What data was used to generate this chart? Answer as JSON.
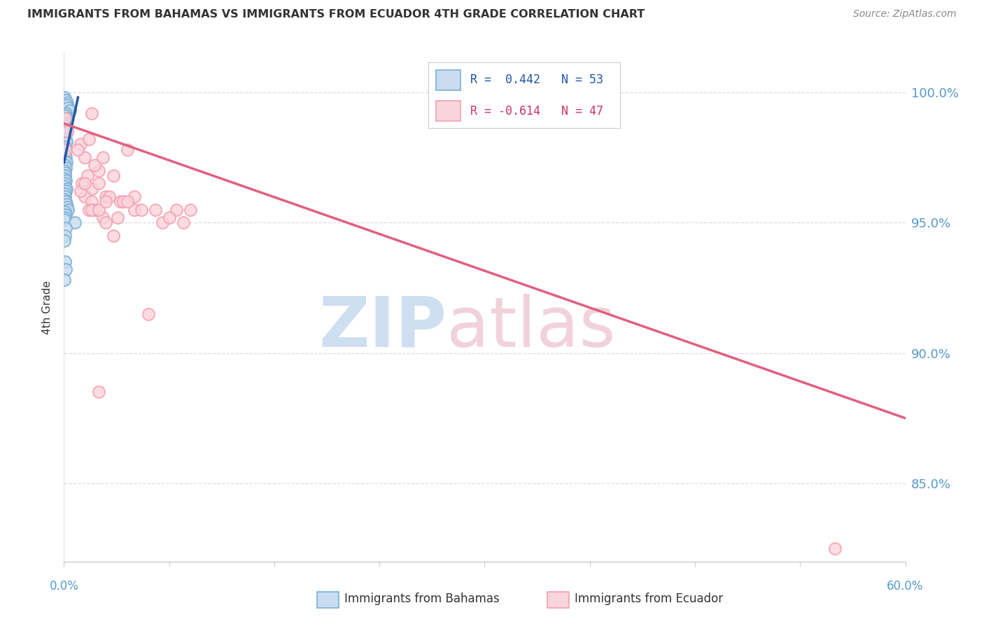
{
  "title": "IMMIGRANTS FROM BAHAMAS VS IMMIGRANTS FROM ECUADOR 4TH GRADE CORRELATION CHART",
  "source": "Source: ZipAtlas.com",
  "ylabel": "4th Grade",
  "xlim": [
    0.0,
    60.0
  ],
  "ylim": [
    82.0,
    101.5
  ],
  "yticks": [
    85.0,
    90.0,
    95.0,
    100.0
  ],
  "legend_r_blue": "R =  0.442",
  "legend_n_blue": "N = 53",
  "legend_r_pink": "R = -0.614",
  "legend_n_pink": "N = 47",
  "color_blue_edge": "#7BAFD4",
  "color_pink_edge": "#F4A0B0",
  "color_line_blue": "#2255AA",
  "color_line_pink": "#E06080",
  "watermark_zip_color": "#C8DCF0",
  "watermark_atlas_color": "#F0CED8",
  "blue_x": [
    0.05,
    0.12,
    0.08,
    0.22,
    0.18,
    0.28,
    0.45,
    0.15,
    0.1,
    0.2,
    0.05,
    0.08,
    0.12,
    0.25,
    0.07,
    0.05,
    0.15,
    0.18,
    0.1,
    0.04,
    0.06,
    0.12,
    0.03,
    0.17,
    0.07,
    0.13,
    0.04,
    0.09,
    0.08,
    0.03,
    0.13,
    0.08,
    0.05,
    0.18,
    0.13,
    0.09,
    0.08,
    0.04,
    0.13,
    0.18,
    0.22,
    0.28,
    0.08,
    0.13,
    0.08,
    0.04,
    0.8,
    0.13,
    0.1,
    0.05,
    0.08,
    0.13,
    0.04
  ],
  "blue_y": [
    99.8,
    99.7,
    99.5,
    99.6,
    99.5,
    99.4,
    99.3,
    99.2,
    99.1,
    99.0,
    98.8,
    98.7,
    98.6,
    98.5,
    98.4,
    98.3,
    98.2,
    98.1,
    97.9,
    97.8,
    97.6,
    97.5,
    97.4,
    97.3,
    97.2,
    97.1,
    97.0,
    96.9,
    96.8,
    96.7,
    96.6,
    96.5,
    96.4,
    96.3,
    96.2,
    96.1,
    96.0,
    95.9,
    95.8,
    95.7,
    95.6,
    95.5,
    95.4,
    95.3,
    95.2,
    95.1,
    95.0,
    94.8,
    94.5,
    94.3,
    93.5,
    93.2,
    92.8
  ],
  "pink_x": [
    0.1,
    0.25,
    0.15,
    2.0,
    1.2,
    1.5,
    2.5,
    1.8,
    2.2,
    1.0,
    1.3,
    1.7,
    2.8,
    2.0,
    1.5,
    1.2,
    3.5,
    2.0,
    1.8,
    2.5,
    3.0,
    4.5,
    2.2,
    3.2,
    2.8,
    2.0,
    1.5,
    3.0,
    4.0,
    2.5,
    5.0,
    4.2,
    3.8,
    3.5,
    5.5,
    6.5,
    7.0,
    5.0,
    4.5,
    3.0,
    8.0,
    8.5,
    6.0,
    9.0,
    7.5,
    55.0,
    2.5
  ],
  "pink_y": [
    99.0,
    98.5,
    97.8,
    99.2,
    98.0,
    97.5,
    97.0,
    98.2,
    97.2,
    97.8,
    96.5,
    96.8,
    97.5,
    96.3,
    96.0,
    96.2,
    96.8,
    95.8,
    95.5,
    96.5,
    96.0,
    97.8,
    95.5,
    96.0,
    95.2,
    95.5,
    96.5,
    95.0,
    95.8,
    95.5,
    95.5,
    95.8,
    95.2,
    94.5,
    95.5,
    95.5,
    95.0,
    96.0,
    95.8,
    95.8,
    95.5,
    95.0,
    91.5,
    95.5,
    95.2,
    82.5,
    88.5
  ],
  "blue_trend_x": [
    0.0,
    1.0
  ],
  "blue_trend_y": [
    97.3,
    99.8
  ],
  "pink_trend_x": [
    0.0,
    60.0
  ],
  "pink_trend_y": [
    98.8,
    87.5
  ],
  "grid_color": "#DDDDDD",
  "bg_color": "#FFFFFF",
  "axis_color": "#CCCCCC",
  "label_color": "#5599CC",
  "text_color": "#333333",
  "legend_box_color": "#CCCCCC"
}
